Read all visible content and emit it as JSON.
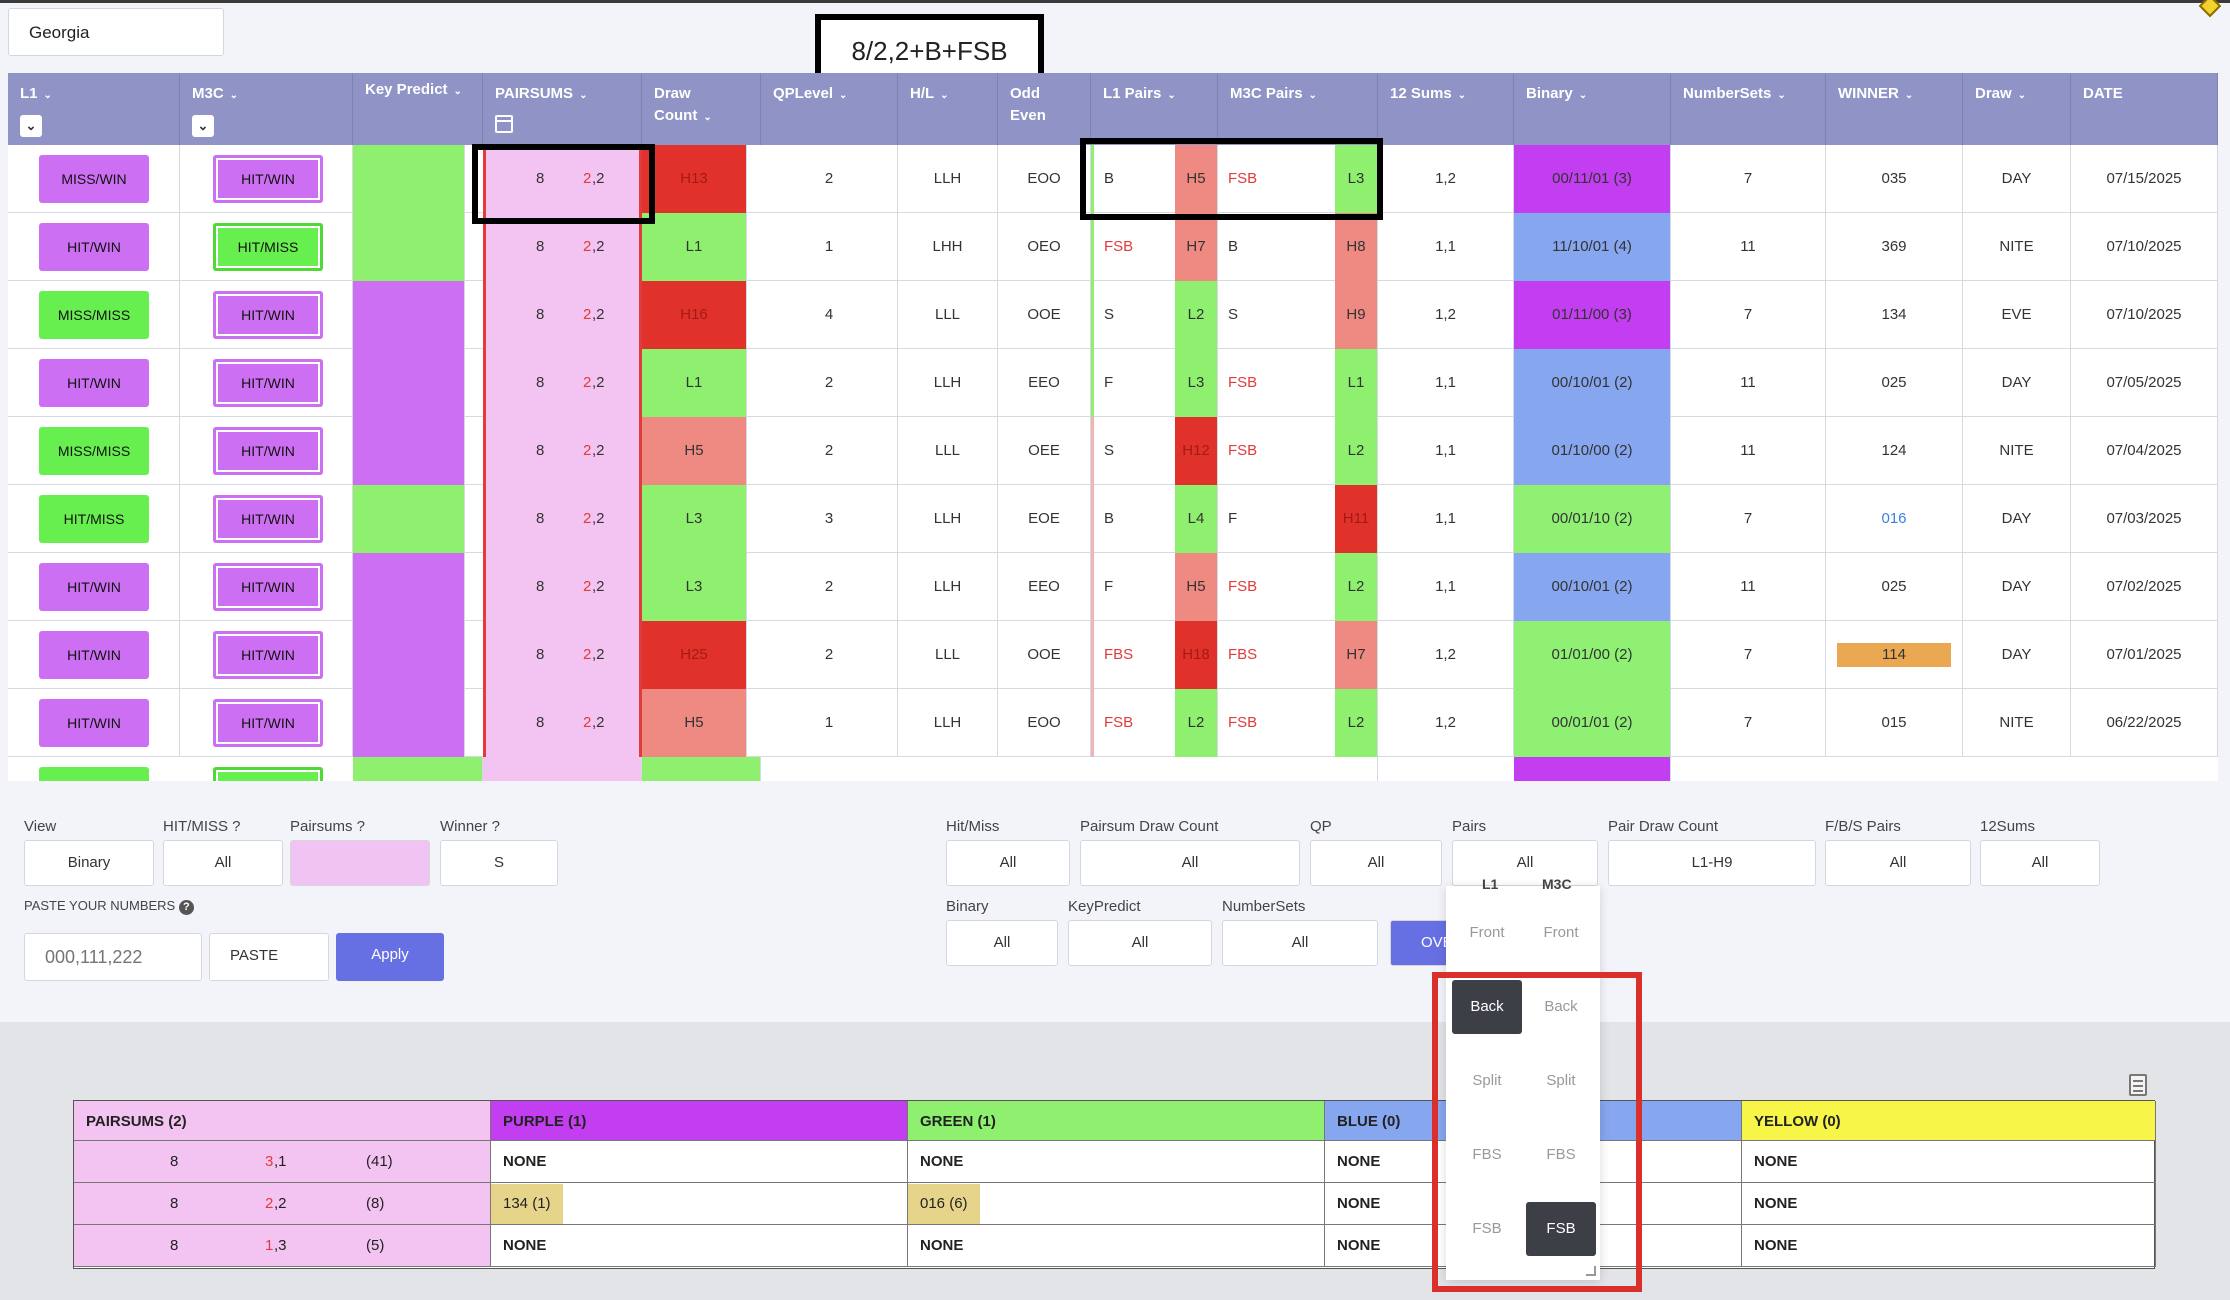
{
  "state": "Georgia",
  "annotation": "8/2,2+B+FSB",
  "columns": [
    {
      "label": "L1",
      "caret": true,
      "checkbox": true
    },
    {
      "label": "M3C",
      "caret": true,
      "checkbox": true
    },
    {
      "label": "Key Predict",
      "caret": true
    },
    {
      "label": "PAIRSUMS",
      "caret": true,
      "calendar": true
    },
    {
      "label": "Draw Count",
      "caret": true
    },
    {
      "label": "QPLevel",
      "caret": true
    },
    {
      "label": "H/L",
      "caret": true
    },
    {
      "label": "Odd Even",
      "caret": false
    },
    {
      "label": "L1 Pairs",
      "caret": true
    },
    {
      "label": "M3C Pairs",
      "caret": true
    },
    {
      "label": "12 Sums",
      "caret": true
    },
    {
      "label": "Binary",
      "caret": true
    },
    {
      "label": "NumberSets",
      "caret": true
    },
    {
      "label": "WINNER",
      "caret": true
    },
    {
      "label": "Draw",
      "caret": true
    },
    {
      "label": "DATE",
      "caret": false
    }
  ],
  "caret_glyph": "⌄",
  "rows": [
    {
      "l1": "MISS/WIN",
      "l1c": "purple",
      "m3c": "HIT/WIN",
      "m3cc": "purple",
      "kp": "green",
      "ps_a": "8",
      "ps_b": "2",
      "ps_c": ",2",
      "dc": "H13",
      "dcc": "dred",
      "qp": "2",
      "hl": "LLH",
      "oe": "EOO",
      "l1p": "B",
      "l1pr": false,
      "l1h": "H5",
      "l1hc": "salmon",
      "m3p": "FSB",
      "m3pr": true,
      "m3h": "L3",
      "m3hc": "green",
      "s12": "1,2",
      "bin": "00/11/01 (3)",
      "binc": "purple",
      "ns": "7",
      "win": "035",
      "winc": "",
      "draw": "DAY",
      "date": "07/15/2025"
    },
    {
      "l1": "HIT/WIN",
      "l1c": "purple",
      "m3c": "HIT/MISS",
      "m3cc": "green",
      "kp": "green",
      "ps_a": "8",
      "ps_b": "2",
      "ps_c": ",2",
      "dc": "L1",
      "dcc": "green",
      "qp": "1",
      "hl": "LHH",
      "oe": "OEO",
      "l1p": "FSB",
      "l1pr": true,
      "l1h": "H7",
      "l1hc": "salmon",
      "m3p": "B",
      "m3pr": false,
      "m3h": "H8",
      "m3hc": "salmon",
      "s12": "1,1",
      "bin": "11/10/01 (4)",
      "binc": "blue",
      "ns": "11",
      "win": "369",
      "winc": "",
      "draw": "NITE",
      "date": "07/10/2025"
    },
    {
      "l1": "MISS/MISS",
      "l1c": "green",
      "m3c": "HIT/WIN",
      "m3cc": "purple",
      "kp": "purple",
      "ps_a": "8",
      "ps_b": "2",
      "ps_c": ",2",
      "dc": "H16",
      "dcc": "dred",
      "qp": "4",
      "hl": "LLL",
      "oe": "OOE",
      "l1p": "S",
      "l1pr": false,
      "l1h": "L2",
      "l1hc": "green",
      "m3p": "S",
      "m3pr": false,
      "m3h": "H9",
      "m3hc": "salmon",
      "s12": "1,2",
      "bin": "01/11/00 (3)",
      "binc": "purple",
      "ns": "7",
      "win": "134",
      "winc": "",
      "draw": "EVE",
      "date": "07/10/2025"
    },
    {
      "l1": "HIT/WIN",
      "l1c": "purple",
      "m3c": "HIT/WIN",
      "m3cc": "purple",
      "kp": "purple",
      "ps_a": "8",
      "ps_b": "2",
      "ps_c": ",2",
      "dc": "L1",
      "dcc": "green",
      "qp": "2",
      "hl": "LLH",
      "oe": "EEO",
      "l1p": "F",
      "l1pr": false,
      "l1h": "L3",
      "l1hc": "green",
      "m3p": "FSB",
      "m3pr": true,
      "m3h": "L1",
      "m3hc": "green",
      "s12": "1,1",
      "bin": "00/10/01 (2)",
      "binc": "blue",
      "ns": "11",
      "win": "025",
      "winc": "",
      "draw": "DAY",
      "date": "07/05/2025"
    },
    {
      "l1": "MISS/MISS",
      "l1c": "green",
      "m3c": "HIT/WIN",
      "m3cc": "purple",
      "kp": "purple",
      "ps_a": "8",
      "ps_b": "2",
      "ps_c": ",2",
      "dc": "H5",
      "dcc": "salmon",
      "qp": "2",
      "hl": "LLL",
      "oe": "OEE",
      "l1p": "S",
      "l1pr": false,
      "l1h": "H12",
      "l1hc": "dred",
      "m3p": "FSB",
      "m3pr": true,
      "m3h": "L2",
      "m3hc": "green",
      "s12": "1,1",
      "bin": "01/10/00 (2)",
      "binc": "blue",
      "ns": "11",
      "win": "124",
      "winc": "",
      "draw": "NITE",
      "date": "07/04/2025"
    },
    {
      "l1": "HIT/MISS",
      "l1c": "green",
      "m3c": "HIT/WIN",
      "m3cc": "purple",
      "kp": "green",
      "ps_a": "8",
      "ps_b": "2",
      "ps_c": ",2",
      "dc": "L3",
      "dcc": "green",
      "qp": "3",
      "hl": "LLH",
      "oe": "EOE",
      "l1p": "B",
      "l1pr": false,
      "l1h": "L4",
      "l1hc": "green",
      "m3p": "F",
      "m3pr": false,
      "m3h": "H11",
      "m3hc": "dred",
      "s12": "1,1",
      "bin": "00/01/10 (2)",
      "binc": "green",
      "ns": "7",
      "win": "016",
      "winc": "blue",
      "draw": "DAY",
      "date": "07/03/2025"
    },
    {
      "l1": "HIT/WIN",
      "l1c": "purple",
      "m3c": "HIT/WIN",
      "m3cc": "purple",
      "kp": "purple",
      "ps_a": "8",
      "ps_b": "2",
      "ps_c": ",2",
      "dc": "L3",
      "dcc": "green",
      "qp": "2",
      "hl": "LLH",
      "oe": "EEO",
      "l1p": "F",
      "l1pr": false,
      "l1h": "H5",
      "l1hc": "salmon",
      "m3p": "FSB",
      "m3pr": true,
      "m3h": "L2",
      "m3hc": "green",
      "s12": "1,1",
      "bin": "00/10/01 (2)",
      "binc": "blue",
      "ns": "11",
      "win": "025",
      "winc": "",
      "draw": "DAY",
      "date": "07/02/2025"
    },
    {
      "l1": "HIT/WIN",
      "l1c": "purple",
      "m3c": "HIT/WIN",
      "m3cc": "purple",
      "kp": "purple",
      "ps_a": "8",
      "ps_b": "2",
      "ps_c": ",2",
      "dc": "H25",
      "dcc": "dred",
      "qp": "2",
      "hl": "LLL",
      "oe": "OOE",
      "l1p": "FBS",
      "l1pr": true,
      "l1h": "H18",
      "l1hc": "dred",
      "m3p": "FBS",
      "m3pr": true,
      "m3h": "H7",
      "m3hc": "salmon",
      "s12": "1,2",
      "bin": "01/01/00 (2)",
      "binc": "green",
      "ns": "7",
      "win": "114",
      "winc": "orange",
      "draw": "DAY",
      "date": "07/01/2025"
    },
    {
      "l1": "HIT/WIN",
      "l1c": "purple",
      "m3c": "HIT/WIN",
      "m3cc": "purple",
      "kp": "purple",
      "ps_a": "8",
      "ps_b": "2",
      "ps_c": ",2",
      "dc": "H5",
      "dcc": "salmon",
      "qp": "1",
      "hl": "LLH",
      "oe": "EOO",
      "l1p": "FSB",
      "l1pr": true,
      "l1h": "L2",
      "l1hc": "green",
      "m3p": "FSB",
      "m3pr": true,
      "m3h": "L2",
      "m3hc": "green",
      "s12": "1,2",
      "bin": "00/01/01 (2)",
      "binc": "green",
      "ns": "7",
      "win": "015",
      "winc": "",
      "draw": "NITE",
      "date": "06/22/2025"
    }
  ],
  "colors": {
    "purple": "#cc6ff2",
    "green": "#8ef06e",
    "pink": "#f3c4f1",
    "dred": "#e0312a",
    "salmon": "#ef8a83",
    "bpurple": "#c23ef0",
    "bblue": "#86a6ef",
    "bgreen": "#8ff074",
    "header": "#8f93c5",
    "accent": "#6770e3"
  },
  "filters": {
    "view_label": "View",
    "view_value": "Binary",
    "hitmiss_label": "HIT/MISS ?",
    "hitmiss_value": "All",
    "pairsums_label": "Pairsums ?",
    "winner_label": "Winner ?",
    "winner_value": "S",
    "paste_label": "PASTE YOUR NUMBERS",
    "paste_placeholder": "000,111,222",
    "paste_button": "PASTE",
    "apply_button": "Apply",
    "hm_label": "Hit/Miss",
    "hm_value": "All",
    "pdc_label": "Pairsum Draw Count",
    "pdc_value": "All",
    "qp_label": "QP",
    "qp_value": "All",
    "pairs_label": "Pairs",
    "pairs_value": "All",
    "pairdc_label": "Pair Draw Count",
    "pairdc_value": "L1-H9",
    "fbs_label": "F/B/S Pairs",
    "fbs_value": "All",
    "s12_label": "12Sums",
    "s12_value": "All",
    "binary_label": "Binary",
    "binary_value": "All",
    "kp_label": "KeyPredict",
    "kp_value": "All",
    "ns_label": "NumberSets",
    "ns_value": "All",
    "over_button": "OVE"
  },
  "pairs_dropdown": {
    "col1": "L1",
    "col2": "M3C",
    "options": [
      "Front",
      "Back",
      "Split",
      "FBS",
      "FSB"
    ],
    "selected_l1": "Back",
    "selected_m3c": "FSB"
  },
  "summary": {
    "headers": [
      "PAIRSUMS (2)",
      "PURPLE (1)",
      "GREEN (1)",
      "BLUE (0)",
      "YELLOW (0)"
    ],
    "rows": [
      {
        "a": "8",
        "b": "3",
        "c": ",1",
        "count": "(41)",
        "purple": "NONE",
        "green": "NONE",
        "blue": "NONE",
        "yellow": "NONE"
      },
      {
        "a": "8",
        "b": "2",
        "c": ",2",
        "count": "(8)",
        "purple": "134 (1)",
        "green": "016 (6)",
        "blue": "NONE",
        "yellow": "NONE"
      },
      {
        "a": "8",
        "b": "1",
        "c": ",3",
        "count": "(5)",
        "purple": "NONE",
        "green": "NONE",
        "blue": "NONE",
        "yellow": "NONE"
      }
    ]
  }
}
